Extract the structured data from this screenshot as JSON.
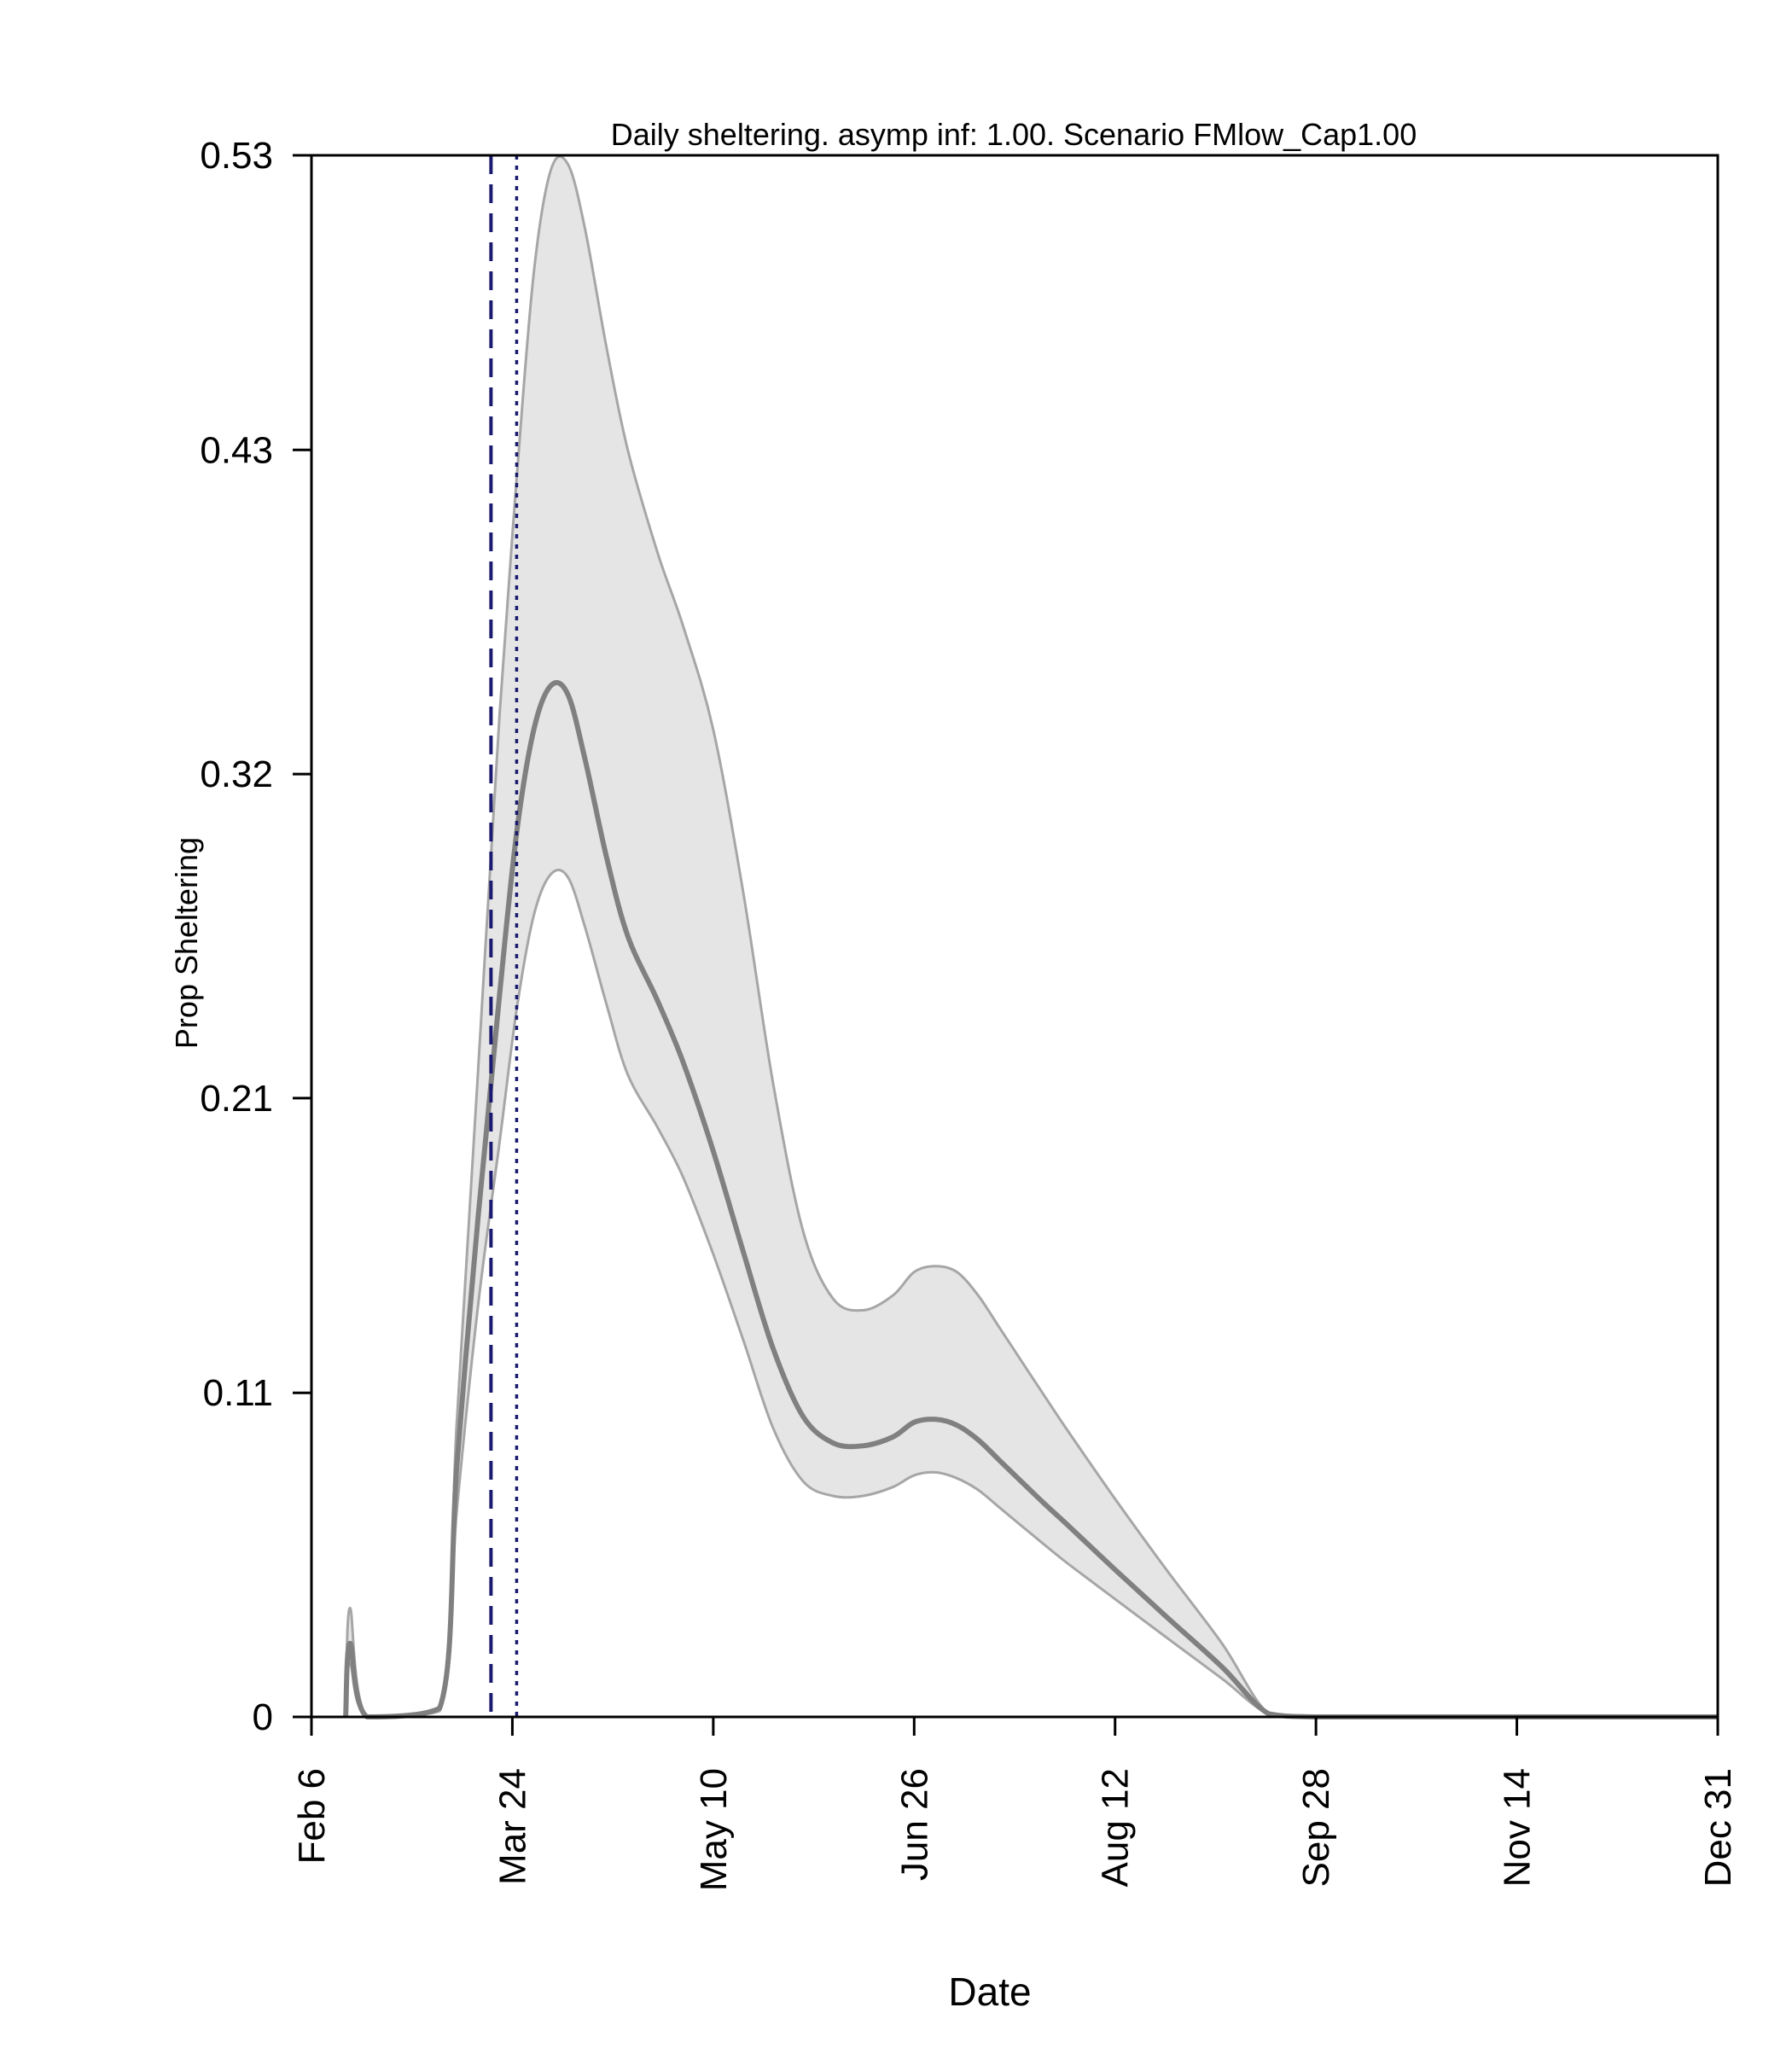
{
  "chart_data": {
    "type": "area",
    "title": "Daily sheltering. asymp inf: 1.00. Scenario FMlow_Cap1.00",
    "xlabel": "Date",
    "ylabel": "Prop Sheltering",
    "x_domain": [
      "Feb 6",
      "Dec 31"
    ],
    "xlim": [
      "2020-02-06",
      "2020-12-31"
    ],
    "ylim": [
      0,
      0.53
    ],
    "x_ticks": [
      "Feb 6",
      "Mar 24",
      "May 10",
      "Jun 26",
      "Aug 12",
      "Sep 28",
      "Nov 14",
      "Dec 31"
    ],
    "y_ticks": [
      "0",
      "0.11",
      "0.21",
      "0.32",
      "0.43",
      "0.53"
    ],
    "y_tick_values": [
      0,
      0.11,
      0.21,
      0.32,
      0.43,
      0.53
    ],
    "grid": false,
    "vlines": [
      {
        "date": "2020-03-19",
        "style": "dashed",
        "color": "#1a1a6e"
      },
      {
        "date": "2020-03-25",
        "style": "dotted",
        "color": "#1a1a6e"
      }
    ],
    "series": [
      {
        "role": "upper",
        "x": [
          "2020-02-14",
          "2020-02-15",
          "2020-02-19",
          "2020-03-07",
          "2020-03-11",
          "2020-03-16",
          "2020-03-21",
          "2020-03-25",
          "2020-03-29",
          "2020-04-02",
          "2020-04-06",
          "2020-04-10",
          "2020-04-15",
          "2020-04-20",
          "2020-04-27",
          "2020-05-03",
          "2020-05-10",
          "2020-05-17",
          "2020-05-24",
          "2020-05-31",
          "2020-06-07",
          "2020-06-14",
          "2020-06-21",
          "2020-06-26",
          "2020-07-01",
          "2020-07-06",
          "2020-07-11",
          "2020-07-16",
          "2020-07-21",
          "2020-07-26",
          "2020-08-01",
          "2020-08-12",
          "2020-08-24",
          "2020-09-06",
          "2020-09-17",
          "2020-09-28",
          "2020-10-15",
          "2020-11-14",
          "2020-12-31"
        ],
        "values": [
          0,
          0.037,
          0,
          0.003,
          0.1,
          0.22,
          0.34,
          0.42,
          0.49,
          0.525,
          0.527,
          0.505,
          0.465,
          0.43,
          0.395,
          0.37,
          0.335,
          0.28,
          0.215,
          0.165,
          0.142,
          0.138,
          0.143,
          0.151,
          0.153,
          0.151,
          0.143,
          0.132,
          0.121,
          0.11,
          0.097,
          0.074,
          0.05,
          0.025,
          0.001,
          0,
          0,
          0,
          0
        ]
      },
      {
        "role": "mean",
        "x": [
          "2020-02-14",
          "2020-02-15",
          "2020-02-19",
          "2020-03-07",
          "2020-03-11",
          "2020-03-16",
          "2020-03-21",
          "2020-03-25",
          "2020-03-29",
          "2020-04-02",
          "2020-04-06",
          "2020-04-10",
          "2020-04-15",
          "2020-04-20",
          "2020-04-27",
          "2020-05-03",
          "2020-05-10",
          "2020-05-17",
          "2020-05-24",
          "2020-05-31",
          "2020-06-07",
          "2020-06-14",
          "2020-06-21",
          "2020-06-26",
          "2020-07-01",
          "2020-07-06",
          "2020-07-11",
          "2020-07-16",
          "2020-07-21",
          "2020-07-26",
          "2020-08-01",
          "2020-08-12",
          "2020-08-24",
          "2020-09-06",
          "2020-09-17",
          "2020-09-28",
          "2020-10-15",
          "2020-11-14",
          "2020-12-31"
        ],
        "values": [
          0,
          0.025,
          0,
          0.003,
          0.085,
          0.17,
          0.245,
          0.3,
          0.335,
          0.35,
          0.347,
          0.325,
          0.292,
          0.265,
          0.243,
          0.222,
          0.192,
          0.158,
          0.125,
          0.102,
          0.093,
          0.092,
          0.095,
          0.1,
          0.101,
          0.099,
          0.094,
          0.087,
          0.08,
          0.073,
          0.065,
          0.05,
          0.034,
          0.017,
          0.001,
          0,
          0,
          0,
          0
        ]
      },
      {
        "role": "lower",
        "x": [
          "2020-02-14",
          "2020-02-15",
          "2020-02-19",
          "2020-03-07",
          "2020-03-11",
          "2020-03-16",
          "2020-03-21",
          "2020-03-25",
          "2020-03-29",
          "2020-04-02",
          "2020-04-06",
          "2020-04-10",
          "2020-04-15",
          "2020-04-20",
          "2020-04-27",
          "2020-05-03",
          "2020-05-10",
          "2020-05-17",
          "2020-05-24",
          "2020-05-31",
          "2020-06-07",
          "2020-06-14",
          "2020-06-21",
          "2020-06-26",
          "2020-07-01",
          "2020-07-06",
          "2020-07-11",
          "2020-07-16",
          "2020-07-21",
          "2020-07-26",
          "2020-08-01",
          "2020-08-12",
          "2020-08-24",
          "2020-09-06",
          "2020-09-17",
          "2020-09-28",
          "2020-10-15",
          "2020-11-14",
          "2020-12-31"
        ],
        "values": [
          0,
          0.018,
          0,
          0.002,
          0.07,
          0.14,
          0.195,
          0.24,
          0.272,
          0.286,
          0.285,
          0.268,
          0.242,
          0.218,
          0.2,
          0.183,
          0.157,
          0.128,
          0.098,
          0.08,
          0.075,
          0.075,
          0.078,
          0.082,
          0.083,
          0.081,
          0.077,
          0.071,
          0.065,
          0.059,
          0.052,
          0.04,
          0.027,
          0.013,
          0.001,
          0,
          0,
          0,
          0
        ]
      }
    ],
    "band_color": "#e5e5e5",
    "band_edge_color": "#a6a6a6",
    "mean_color": "#808080",
    "axis_color": "#000000"
  }
}
